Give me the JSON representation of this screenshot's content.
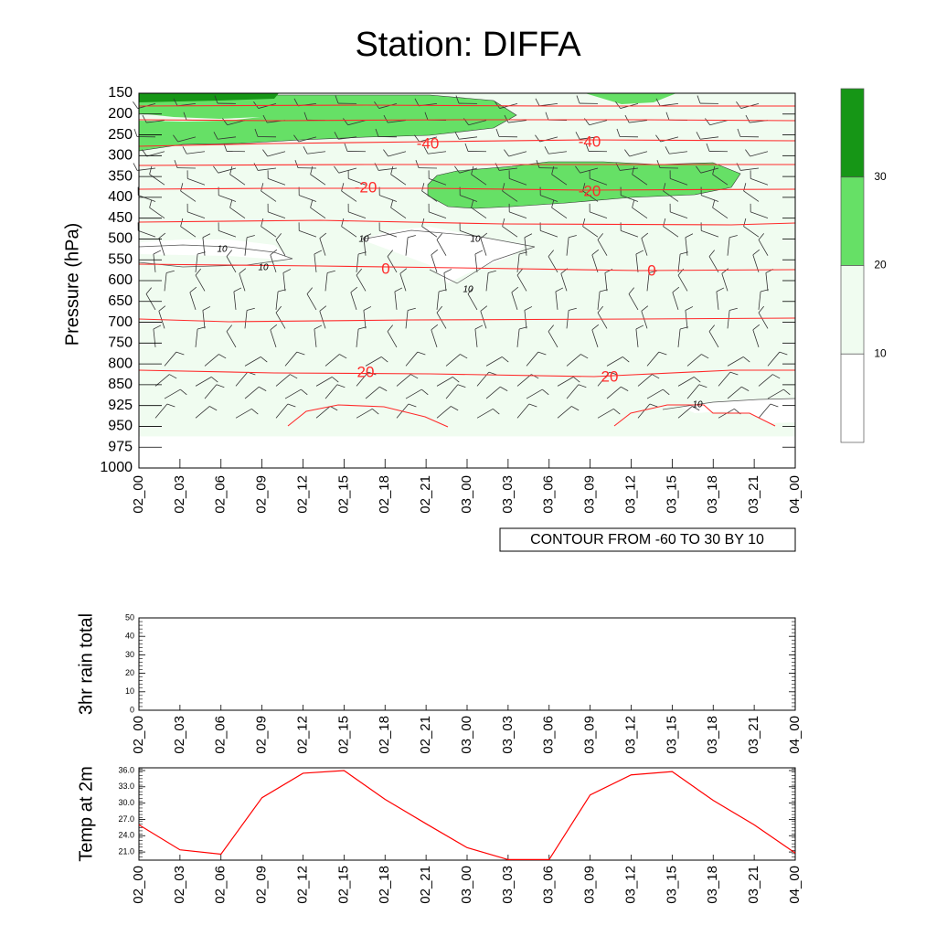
{
  "title": "Station: DIFFA",
  "colors": {
    "fill_lt10": "#ffffff",
    "fill_10_20": "#f0fcf0",
    "fill_20_30": "#66e066",
    "fill_gt30": "#169616",
    "temp_contour": "#ff2a2a",
    "temp_line": "#ff0000"
  },
  "chart_data": [
    {
      "type": "contour",
      "name": "main-profile",
      "ylabel": "Pressure (hPa)",
      "x_tick_labels": [
        "02_00",
        "02_03",
        "02_06",
        "02_09",
        "02_12",
        "02_15",
        "02_18",
        "02_21",
        "03_00",
        "03_03",
        "03_06",
        "03_09",
        "03_12",
        "03_15",
        "03_18",
        "03_21",
        "04_00"
      ],
      "y_tick_labels": [
        "150",
        "200",
        "250",
        "300",
        "350",
        "400",
        "450",
        "500",
        "550",
        "600",
        "650",
        "700",
        "750",
        "800",
        "850",
        "925",
        "950",
        "975",
        "1000"
      ],
      "y_levels": [
        150,
        200,
        250,
        300,
        350,
        400,
        450,
        500,
        550,
        600,
        650,
        700,
        750,
        800,
        850,
        925,
        950,
        975,
        1000
      ],
      "contour_info": "CONTOUR FROM -60 TO 30 BY 10",
      "temperature_contours": [
        {
          "label": "-40",
          "level_hpa": 260
        },
        {
          "label": "-20",
          "level_hpa": 378
        },
        {
          "label": "0",
          "level_hpa": 568
        },
        {
          "label": "20",
          "level_hpa": 820
        }
      ],
      "wind_speed_labels": [
        "10",
        "10",
        "10",
        "10",
        "10",
        "10"
      ],
      "colorbar": {
        "labels": [
          "10",
          "20",
          "30"
        ],
        "ticks": [
          10,
          20,
          30
        ],
        "range": [
          0,
          40
        ]
      }
    },
    {
      "type": "line",
      "name": "rain",
      "ylabel": "3hr rain total",
      "ylim": [
        0,
        50
      ],
      "y_tick_labels": [
        "0",
        "10",
        "20",
        "30",
        "40",
        "50"
      ],
      "y_ticks": [
        0,
        10,
        20,
        30,
        40,
        50
      ],
      "x_tick_labels": [
        "02_00",
        "02_03",
        "02_06",
        "02_09",
        "02_12",
        "02_15",
        "02_18",
        "02_21",
        "03_00",
        "03_03",
        "03_06",
        "03_09",
        "03_12",
        "03_15",
        "03_18",
        "03_21",
        "04_00"
      ],
      "values": []
    },
    {
      "type": "line",
      "name": "temp2m",
      "ylabel": "Temp at 2m",
      "ylim": [
        19.5,
        36.5
      ],
      "y_tick_labels": [
        "21.0",
        "24.0",
        "27.0",
        "30.0",
        "33.0",
        "36.0"
      ],
      "y_ticks": [
        21,
        24,
        27,
        30,
        33,
        36
      ],
      "x_tick_labels": [
        "02_00",
        "02_03",
        "02_06",
        "02_09",
        "02_12",
        "02_15",
        "02_18",
        "02_21",
        "03_00",
        "03_03",
        "03_06",
        "03_09",
        "03_12",
        "03_15",
        "03_18",
        "03_21",
        "04_00"
      ],
      "values": [
        26.0,
        21.4,
        20.6,
        31.0,
        35.5,
        36.0,
        30.7,
        26.2,
        21.8,
        19.6,
        19.6,
        31.5,
        35.2,
        35.8,
        30.5,
        26.0,
        20.8
      ]
    }
  ]
}
